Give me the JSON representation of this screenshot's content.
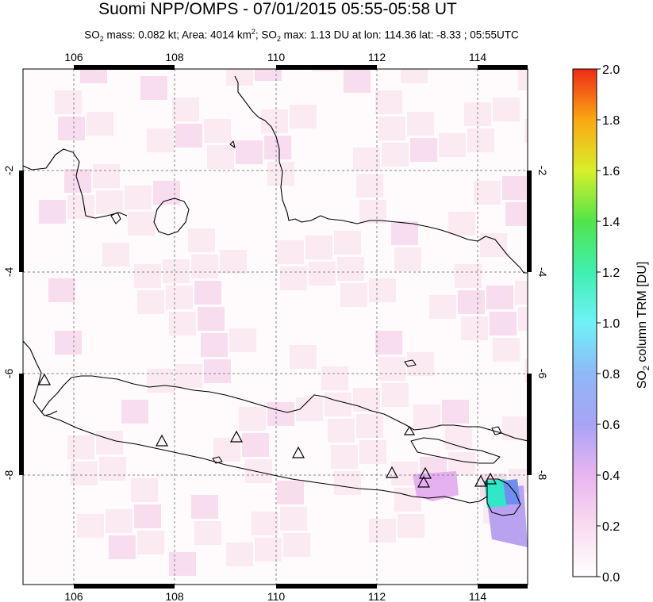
{
  "header": {
    "title": "Suomi NPP/OMPS - 07/01/2015 05:55-05:58 UT",
    "subtitle_parts": {
      "so2_prefix": "SO",
      "so2_sub": "2",
      "mass": " mass: 0.082 kt; Area: 4014 km",
      "area_sup": "2",
      "so2_max_prefix": "; SO",
      "so2_max_sub": "2",
      "rest": " max: 1.13 DU at lon: 114.36 lat: -8.33 ; 05:55UTC"
    }
  },
  "map": {
    "lon_ticks": [
      "106",
      "108",
      "110",
      "112",
      "114"
    ],
    "lat_ticks": [
      "-2",
      "-4",
      "-6",
      "-8"
    ],
    "lon_range": [
      105,
      115
    ],
    "lat_range": [
      -10,
      0.5
    ],
    "volcano_count": 11
  },
  "colorbar": {
    "label_prefix": "SO",
    "label_sub": "2",
    "label_suffix": " column TRM [DU]",
    "ticks": [
      "0.0",
      "0.2",
      "0.4",
      "0.6",
      "0.8",
      "1.0",
      "1.2",
      "1.4",
      "1.6",
      "1.8",
      "2.0"
    ],
    "range": [
      0,
      2.0
    ]
  },
  "colors": {
    "background": "#fffafb",
    "pixel_light": "#fcebf3",
    "pixel_mid": "#f7d6ec",
    "hotspot_cyan": "#33e6c8",
    "hotspot_purple": "#b9a3f0"
  }
}
